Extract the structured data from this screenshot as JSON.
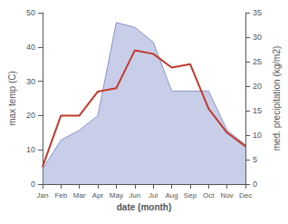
{
  "chart_data": {
    "type": "line",
    "categories": [
      "Jan",
      "Feb",
      "Mar",
      "Apr",
      "May",
      "Jun",
      "Jul",
      "Aug",
      "Sep",
      "Oct",
      "Nov",
      "Dec"
    ],
    "xlabel": "date (month)",
    "ylabel": "max temp (C)",
    "y2label": "med. precipitation (kg/m2)",
    "ylim": [
      0,
      50
    ],
    "yticks": [
      0,
      10,
      20,
      30,
      40,
      50
    ],
    "y2lim": [
      0,
      35
    ],
    "y2ticks": [
      0,
      5,
      10,
      15,
      20,
      25,
      30,
      35
    ],
    "grid": false,
    "series": [
      {
        "type": "area",
        "axis": "y2",
        "color": "#8892cc",
        "values": [
          3,
          9,
          11,
          14,
          33,
          32,
          29,
          19,
          19,
          19,
          11,
          8
        ]
      },
      {
        "type": "line",
        "color": "#c0392b",
        "values": [
          5,
          20,
          20,
          27,
          28,
          39,
          38,
          34,
          35,
          22,
          15,
          11
        ]
      }
    ]
  }
}
